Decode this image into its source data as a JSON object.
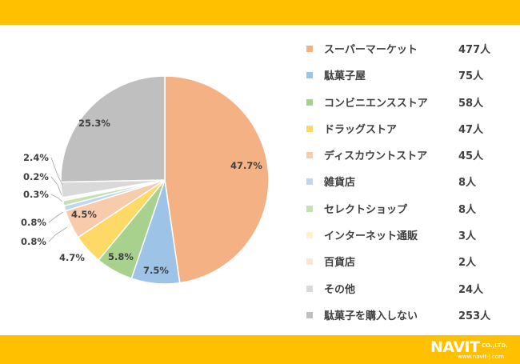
{
  "theme": {
    "band_color": "#FFC000"
  },
  "chart_data": {
    "type": "pie",
    "start": "12 o'clock, clockwise",
    "slices": [
      {
        "label": "スーパーマーケット",
        "count": "477人",
        "percent": 47.7,
        "pct_label": "47.7%",
        "color": "#F4B183"
      },
      {
        "label": "駄菓子屋",
        "count": "75人",
        "percent": 7.5,
        "pct_label": "7.5%",
        "color": "#9DC3E6"
      },
      {
        "label": "コンビニエンスストア",
        "count": "58人",
        "percent": 5.8,
        "pct_label": "5.8%",
        "color": "#A9D18E"
      },
      {
        "label": "ドラッグストア",
        "count": "47人",
        "percent": 4.7,
        "pct_label": "4.7%",
        "color": "#FFD966"
      },
      {
        "label": "ディスカウントストア",
        "count": "45人",
        "percent": 4.5,
        "pct_label": "4.5%",
        "color": "#F8CBAD"
      },
      {
        "label": "雑貨店",
        "count": "8人",
        "percent": 0.8,
        "pct_label": "0.8%",
        "color": "#BDD7EE"
      },
      {
        "label": "セレクトショップ",
        "count": "8人",
        "percent": 0.8,
        "pct_label": "0.8%",
        "color": "#C5E0B4"
      },
      {
        "label": "インターネット通販",
        "count": "3人",
        "percent": 0.3,
        "pct_label": "0.3%",
        "color": "#FFF2CC"
      },
      {
        "label": "百貨店",
        "count": "2人",
        "percent": 0.2,
        "pct_label": "0.2%",
        "color": "#FBE5D6"
      },
      {
        "label": "その他",
        "count": "24人",
        "percent": 2.4,
        "pct_label": "2.4%",
        "color": "#D9D9D9"
      },
      {
        "label": "駄菓子を購入しない",
        "count": "253人",
        "percent": 25.3,
        "pct_label": "25.3%",
        "color": "#BFBFBF"
      }
    ]
  },
  "logo": {
    "name": "NAVIT",
    "company": "CO.,LTD.",
    "url": "www.navit-j.com"
  }
}
